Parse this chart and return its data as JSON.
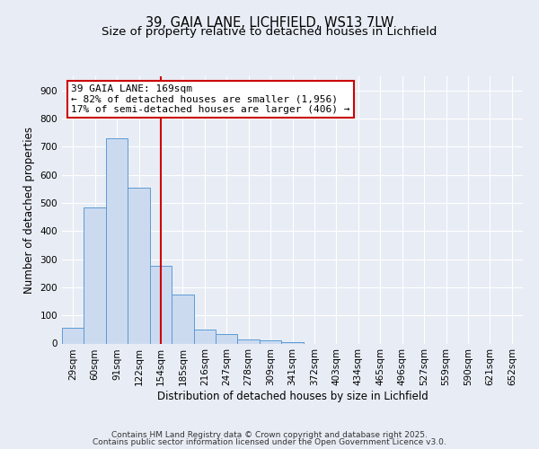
{
  "title1": "39, GAIA LANE, LICHFIELD, WS13 7LW",
  "title2": "Size of property relative to detached houses in Lichfield",
  "xlabel": "Distribution of detached houses by size in Lichfield",
  "ylabel": "Number of detached properties",
  "categories": [
    "29sqm",
    "60sqm",
    "91sqm",
    "122sqm",
    "154sqm",
    "185sqm",
    "216sqm",
    "247sqm",
    "278sqm",
    "309sqm",
    "341sqm",
    "372sqm",
    "403sqm",
    "434sqm",
    "465sqm",
    "496sqm",
    "527sqm",
    "559sqm",
    "590sqm",
    "621sqm",
    "652sqm"
  ],
  "bar_heights": [
    57,
    483,
    730,
    553,
    275,
    175,
    50,
    33,
    15,
    10,
    5,
    0,
    0,
    0,
    0,
    0,
    0,
    0,
    0,
    0,
    0
  ],
  "bar_color": "#ccdaf0",
  "bar_edge_color": "#5b9bd5",
  "vline_color": "#cc0000",
  "annotation_text": "39 GAIA LANE: 169sqm\n← 82% of detached houses are smaller (1,956)\n17% of semi-detached houses are larger (406) →",
  "annotation_box_color": "#ffffff",
  "ylim": [
    0,
    950
  ],
  "yticks": [
    0,
    100,
    200,
    300,
    400,
    500,
    600,
    700,
    800,
    900
  ],
  "bg_color": "#e8edf5",
  "footer1": "Contains HM Land Registry data © Crown copyright and database right 2025.",
  "footer2": "Contains public sector information licensed under the Open Government Licence v3.0.",
  "title_fontsize": 10.5,
  "subtitle_fontsize": 9.5,
  "axis_label_fontsize": 8.5,
  "tick_fontsize": 7.5,
  "annotation_fontsize": 8,
  "footer_fontsize": 6.5
}
